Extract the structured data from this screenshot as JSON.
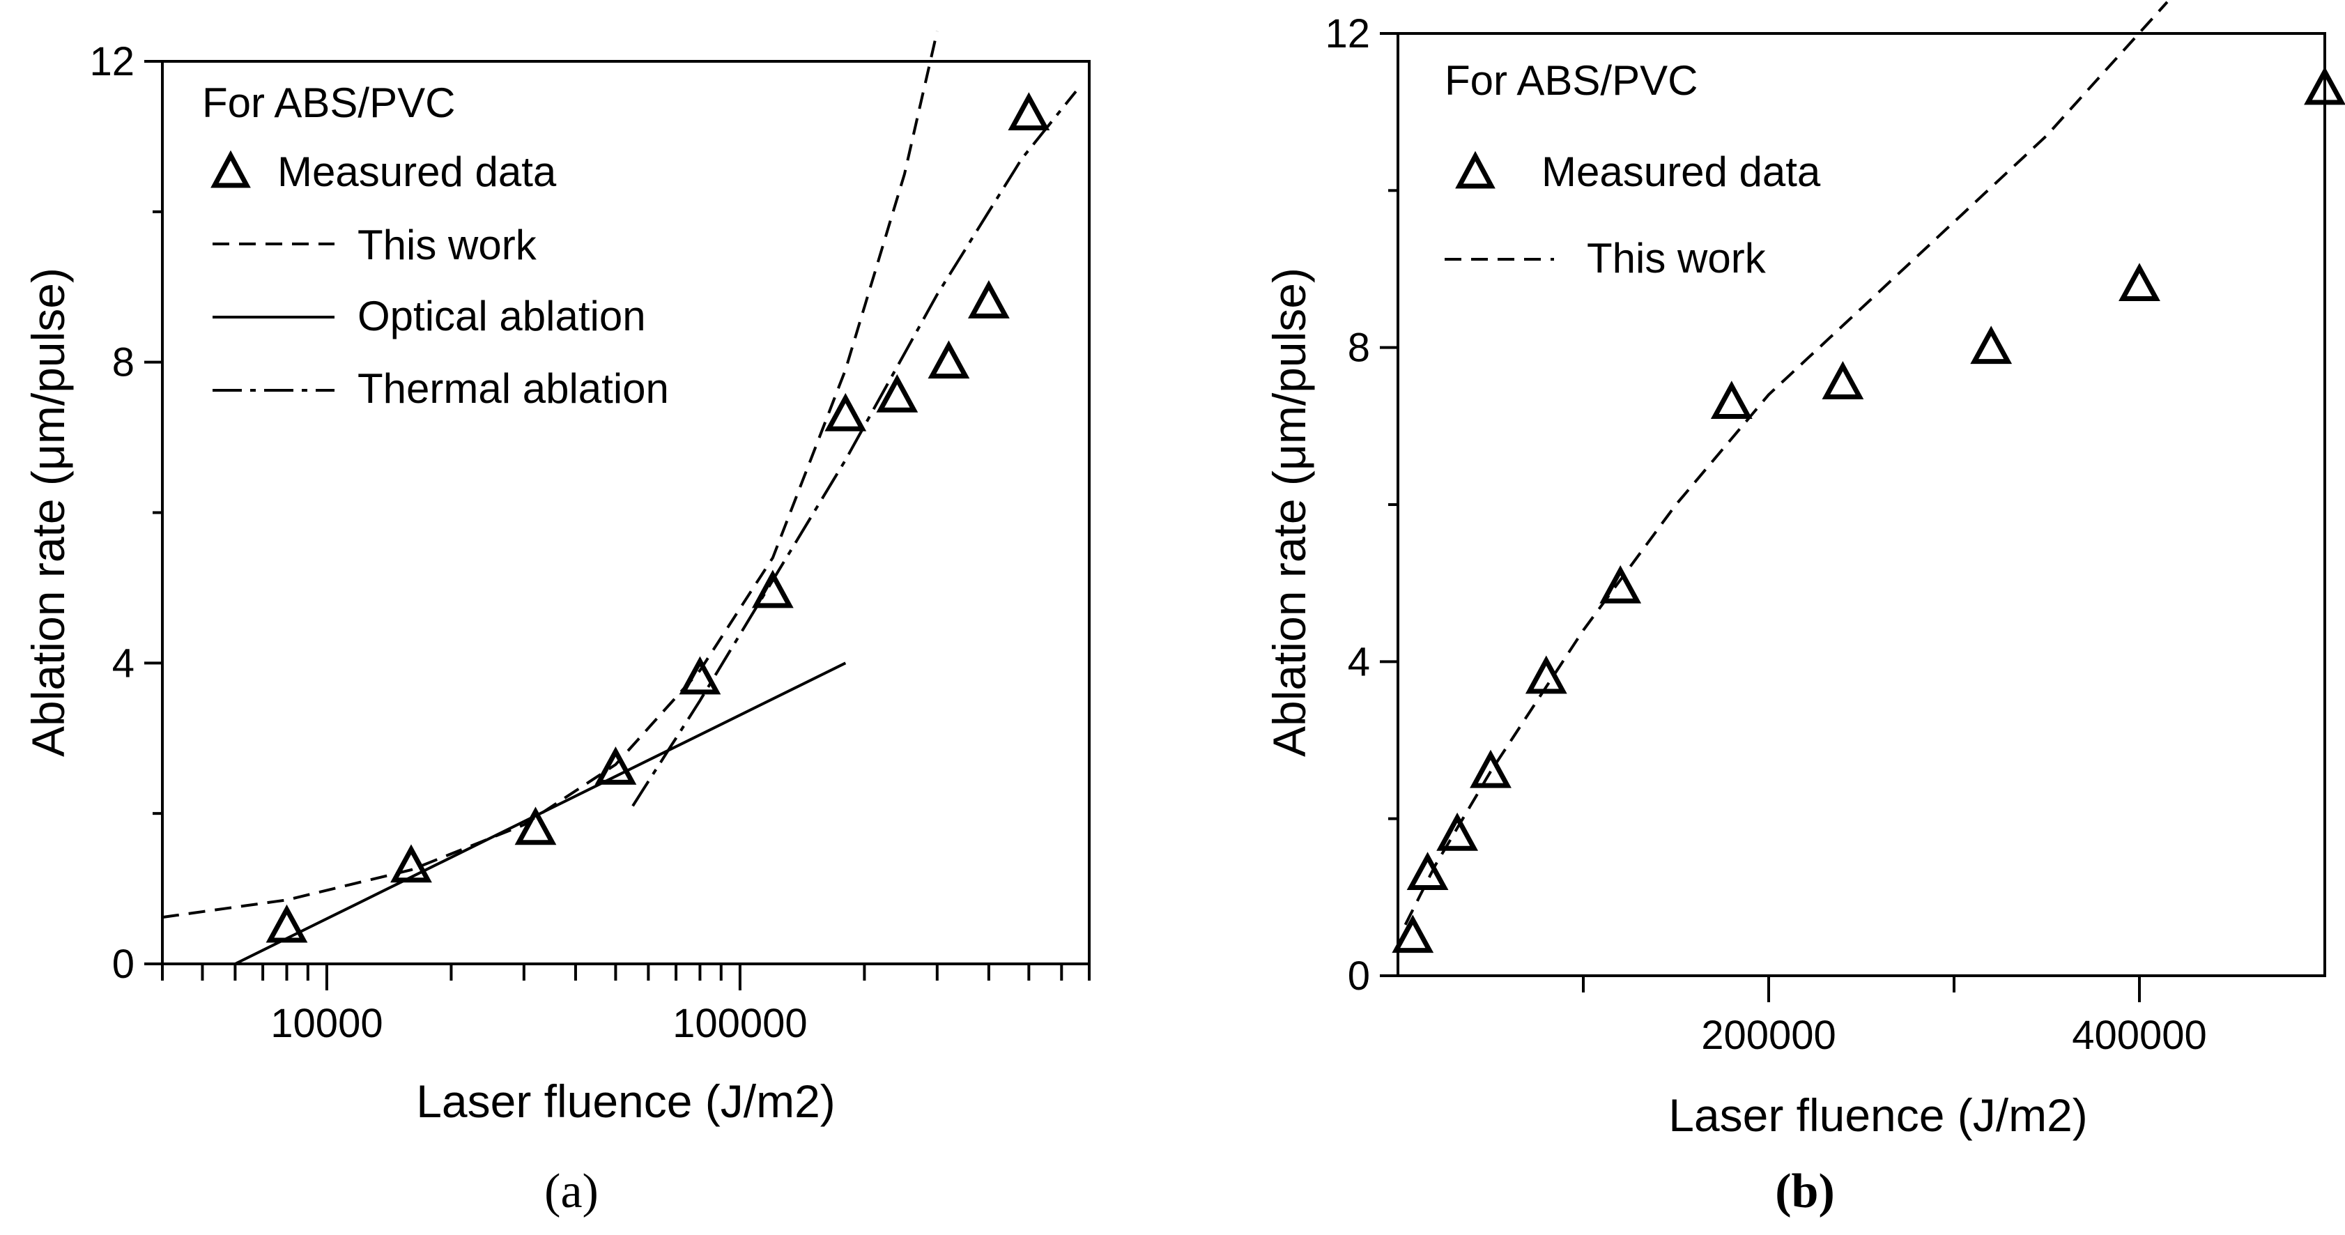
{
  "chart_data": [
    {
      "panel": "(a)",
      "type": "scatter",
      "xscale": "log",
      "title": "",
      "xlabel": "Laser fluence (J/m2)",
      "ylabel": "Ablation rate (μm/pulse)",
      "xlim": [
        4000,
        700000
      ],
      "ylim": [
        0,
        12
      ],
      "x_ticks": [
        {
          "value": 10000,
          "label": "10000"
        },
        {
          "value": 100000,
          "label": "100000"
        }
      ],
      "y_ticks": [
        {
          "value": 0,
          "label": "0"
        },
        {
          "value": 4,
          "label": "4"
        },
        {
          "value": 8,
          "label": "8"
        },
        {
          "value": 12,
          "label": "12"
        }
      ],
      "legend_title": "For ABS/PVC",
      "legend_position": "top-left",
      "series": [
        {
          "name": "Measured data",
          "style": "triangle",
          "points": [
            [
              8000,
              0.5
            ],
            [
              16000,
              1.3
            ],
            [
              32000,
              1.8
            ],
            [
              50000,
              2.6
            ],
            [
              80000,
              3.8
            ],
            [
              120000,
              4.95
            ],
            [
              180000,
              7.3
            ],
            [
              240000,
              7.55
            ],
            [
              320000,
              8.0
            ],
            [
              400000,
              8.8
            ],
            [
              500000,
              11.3
            ]
          ]
        },
        {
          "name": "This work",
          "style": "dashed",
          "points": [
            [
              4000,
              0.62
            ],
            [
              8000,
              0.85
            ],
            [
              16000,
              1.25
            ],
            [
              30000,
              1.85
            ],
            [
              50000,
              2.65
            ],
            [
              80000,
              3.9
            ],
            [
              120000,
              5.4
            ],
            [
              180000,
              7.9
            ],
            [
              250000,
              10.5
            ],
            [
              300000,
              12.4
            ]
          ]
        },
        {
          "name": "Optical ablation",
          "style": "solid",
          "points": [
            [
              6000,
              0
            ],
            [
              180000,
              4.0
            ]
          ]
        },
        {
          "name": "Thermal ablation",
          "style": "dashdot",
          "points": [
            [
              55000,
              2.1
            ],
            [
              80000,
              3.5
            ],
            [
              120000,
              5.1
            ],
            [
              180000,
              6.7
            ],
            [
              300000,
              8.9
            ],
            [
              480000,
              10.7
            ],
            [
              650000,
              11.6
            ]
          ]
        }
      ]
    },
    {
      "panel": "(b)",
      "type": "scatter",
      "xscale": "linear",
      "title": "",
      "xlabel": "Laser fluence (J/m2)",
      "ylabel": "Ablation rate (μm/pulse)",
      "xlim": [
        0,
        500000
      ],
      "ylim": [
        0,
        12
      ],
      "x_ticks": [
        {
          "value": 200000,
          "label": "200000"
        },
        {
          "value": 400000,
          "label": "400000"
        }
      ],
      "y_ticks": [
        {
          "value": 0,
          "label": "0"
        },
        {
          "value": 4,
          "label": "4"
        },
        {
          "value": 8,
          "label": "8"
        },
        {
          "value": 12,
          "label": "12"
        }
      ],
      "legend_title": "For ABS/PVC",
      "legend_position": "top-left",
      "series": [
        {
          "name": "Measured data",
          "style": "triangle",
          "points": [
            [
              8000,
              0.5
            ],
            [
              16000,
              1.3
            ],
            [
              32000,
              1.8
            ],
            [
              50000,
              2.6
            ],
            [
              80000,
              3.8
            ],
            [
              120000,
              4.95
            ],
            [
              180000,
              7.3
            ],
            [
              240000,
              7.55
            ],
            [
              320000,
              8.0
            ],
            [
              400000,
              8.8
            ],
            [
              500000,
              11.3
            ]
          ]
        },
        {
          "name": "This work",
          "style": "dashed",
          "points": [
            [
              4000,
              0.65
            ],
            [
              20000,
              1.4
            ],
            [
              50000,
              2.6
            ],
            [
              100000,
              4.4
            ],
            [
              150000,
              6.0
            ],
            [
              200000,
              7.4
            ],
            [
              250000,
              8.5
            ],
            [
              300000,
              9.6
            ],
            [
              350000,
              10.7
            ],
            [
              415000,
              12.4
            ]
          ]
        }
      ]
    }
  ],
  "captions": [
    "(a)",
    "(b)"
  ]
}
